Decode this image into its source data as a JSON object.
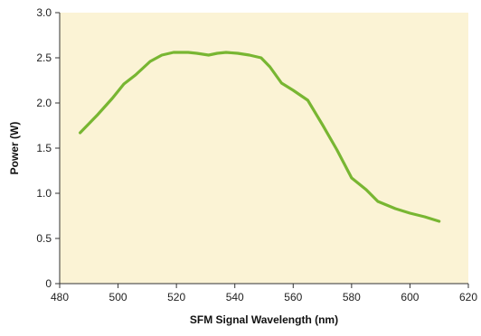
{
  "chart_data": {
    "type": "line",
    "title": "",
    "xlabel": "SFM Signal Wavelength (nm)",
    "ylabel": "Power (W)",
    "xlim": [
      480,
      620
    ],
    "ylim": [
      0,
      3.0
    ],
    "x_ticks": [
      "480",
      "500",
      "520",
      "540",
      "560",
      "580",
      "600",
      "620"
    ],
    "y_ticks": [
      "0",
      "0.5",
      "1.0",
      "1.5",
      "2.0",
      "2.5",
      "3.0"
    ],
    "x_tick_values": [
      480,
      500,
      520,
      540,
      560,
      580,
      600,
      620
    ],
    "y_tick_values": [
      0,
      0.5,
      1.0,
      1.5,
      2.0,
      2.5,
      3.0
    ],
    "grid": false,
    "legend": "none",
    "series": [
      {
        "color": "#78b632",
        "x": [
          487,
          493,
          498,
          502,
          506,
          511,
          515,
          519,
          524,
          527,
          531,
          534,
          537,
          541,
          545,
          549,
          552,
          556,
          560,
          565,
          570,
          575,
          580,
          585,
          589,
          595,
          600,
          605,
          610
        ],
        "y": [
          1.67,
          1.87,
          2.05,
          2.21,
          2.31,
          2.46,
          2.53,
          2.56,
          2.56,
          2.55,
          2.53,
          2.55,
          2.56,
          2.55,
          2.53,
          2.5,
          2.4,
          2.22,
          2.14,
          2.03,
          1.76,
          1.48,
          1.17,
          1.04,
          0.91,
          0.83,
          0.78,
          0.74,
          0.69
        ]
      }
    ],
    "colors": {
      "plot_background": "#fbf3d5",
      "axis": "#333333",
      "line": "#78b632"
    }
  }
}
